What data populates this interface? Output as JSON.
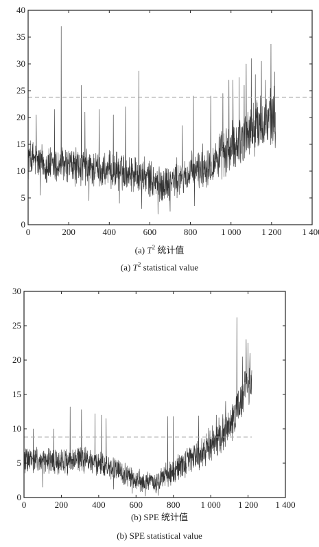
{
  "panels": [
    {
      "caption_cn": {
        "prefix": "(a)",
        "var": "T",
        "sup": "2",
        "suffix": "统计值"
      },
      "caption_en": {
        "prefix": "(a)",
        "var": "T",
        "sup": "2",
        "suffix": "statistical value"
      }
    },
    {
      "caption_cn": {
        "prefix": "(b) SPE",
        "suffix": "统计值"
      },
      "caption_en": {
        "text": "(b) SPE statistical value"
      }
    }
  ],
  "chart_data": [
    {
      "type": "line",
      "title": "",
      "xlabel": "",
      "ylabel": "",
      "xlim": [
        0,
        1400
      ],
      "ylim": [
        0,
        40
      ],
      "xticks": [
        0,
        200,
        400,
        600,
        800,
        1000,
        1200,
        1400
      ],
      "xtick_labels": [
        "0",
        "200",
        "400",
        "600",
        "800",
        "1 000",
        "1 200",
        "1 400"
      ],
      "yticks": [
        0,
        5,
        10,
        15,
        20,
        25,
        30,
        35,
        40
      ],
      "ytick_labels": [
        "0",
        "5",
        "10",
        "15",
        "20",
        "25",
        "30",
        "35",
        "40"
      ],
      "grid": false,
      "series": [
        {
          "style": "solid",
          "color": "#333333",
          "n_points": 1220,
          "x_range": [
            1,
            1220
          ],
          "trend": [
            [
              0,
              12.5
            ],
            [
              100,
              11
            ],
            [
              200,
              11
            ],
            [
              300,
              10.5
            ],
            [
              400,
              10
            ],
            [
              500,
              10
            ],
            [
              600,
              8.5
            ],
            [
              650,
              7.5
            ],
            [
              700,
              8
            ],
            [
              800,
              9.5
            ],
            [
              900,
              11.5
            ],
            [
              1000,
              14
            ],
            [
              1100,
              17.5
            ],
            [
              1150,
              19
            ],
            [
              1220,
              19.5
            ]
          ],
          "noise_amplitude": [
            [
              0,
              3
            ],
            [
              600,
              2.8
            ],
            [
              800,
              3
            ],
            [
              1000,
              4
            ],
            [
              1220,
              5
            ]
          ],
          "spikes": [
            [
              163,
              37
            ],
            [
              546,
              28.7
            ],
            [
              1197,
              33.7
            ],
            [
              1100,
              31
            ],
            [
              1075,
              30
            ],
            [
              1150,
              30.5
            ],
            [
              1215,
              28.5
            ],
            [
              262,
              26
            ],
            [
              1040,
              27.5
            ],
            [
              990,
              27
            ],
            [
              1010,
              27
            ],
            [
              1065,
              26
            ],
            [
              960,
              24.5
            ],
            [
              815,
              24
            ],
            [
              900,
              24
            ],
            [
              1170,
              27
            ],
            [
              1120,
              28
            ],
            [
              130,
              21.5
            ],
            [
              280,
              21
            ],
            [
              350,
              21.5
            ],
            [
              420,
              20.5
            ],
            [
              480,
              22
            ],
            [
              700,
              18
            ],
            [
              760,
              18.5
            ],
            [
              40,
              20.5
            ]
          ],
          "dips": [
            [
              640,
              2
            ],
            [
              700,
              2.5
            ],
            [
              560,
              3
            ],
            [
              820,
              3.5
            ],
            [
              450,
              4
            ],
            [
              300,
              4.5
            ],
            [
              60,
              5.5
            ]
          ],
          "end_value": 21
        },
        {
          "style": "dashed",
          "color": "#aaaaaa",
          "x": [
            0,
            1400
          ],
          "y": [
            23.8,
            23.8
          ]
        }
      ]
    },
    {
      "type": "line",
      "title": "",
      "xlabel": "",
      "ylabel": "",
      "xlim": [
        0,
        1400
      ],
      "ylim": [
        0,
        30
      ],
      "xticks": [
        0,
        200,
        400,
        600,
        800,
        1000,
        1200,
        1400
      ],
      "xtick_labels": [
        "0",
        "200",
        "400",
        "600",
        "800",
        "1 000",
        "1 200",
        "1 400"
      ],
      "yticks": [
        0,
        5,
        10,
        15,
        20,
        25,
        30
      ],
      "ytick_labels": [
        "0",
        "5",
        "10",
        "15",
        "20",
        "25",
        "30"
      ],
      "grid": false,
      "series": [
        {
          "style": "solid",
          "color": "#333333",
          "n_points": 1220,
          "x_range": [
            1,
            1220
          ],
          "trend": [
            [
              0,
              5.5
            ],
            [
              100,
              5.2
            ],
            [
              200,
              5.2
            ],
            [
              300,
              5.5
            ],
            [
              400,
              5
            ],
            [
              500,
              4
            ],
            [
              600,
              2.5
            ],
            [
              700,
              2.2
            ],
            [
              780,
              3.5
            ],
            [
              850,
              4.8
            ],
            [
              950,
              6.5
            ],
            [
              1050,
              9
            ],
            [
              1100,
              10.5
            ],
            [
              1150,
              13
            ],
            [
              1200,
              16.5
            ],
            [
              1220,
              17.5
            ]
          ],
          "noise_amplitude": [
            [
              0,
              1.6
            ],
            [
              500,
              1.4
            ],
            [
              700,
              1.2
            ],
            [
              900,
              1.8
            ],
            [
              1100,
              2.2
            ],
            [
              1220,
              2.8
            ]
          ],
          "spikes": [
            [
              1140,
              26.2
            ],
            [
              247,
              13.2
            ],
            [
              308,
              12.8
            ],
            [
              380,
              12.2
            ],
            [
              415,
              12
            ],
            [
              1190,
              23
            ],
            [
              1200,
              22.5
            ],
            [
              440,
              11.5
            ],
            [
              770,
              11.8
            ],
            [
              800,
              11.8
            ],
            [
              935,
              11.9
            ],
            [
              50,
              10
            ],
            [
              160,
              10
            ],
            [
              1030,
              12
            ],
            [
              1080,
              14
            ],
            [
              1170,
              20.5
            ],
            [
              1210,
              21
            ]
          ],
          "dips": [
            [
              650,
              0.2
            ],
            [
              720,
              0.3
            ],
            [
              580,
              0.6
            ],
            [
              100,
              1.5
            ],
            [
              480,
              1.2
            ]
          ],
          "end_value": 18.5
        },
        {
          "style": "dashed",
          "color": "#aaaaaa",
          "x": [
            0,
            1220
          ],
          "y": [
            8.8,
            8.8
          ]
        }
      ]
    }
  ]
}
